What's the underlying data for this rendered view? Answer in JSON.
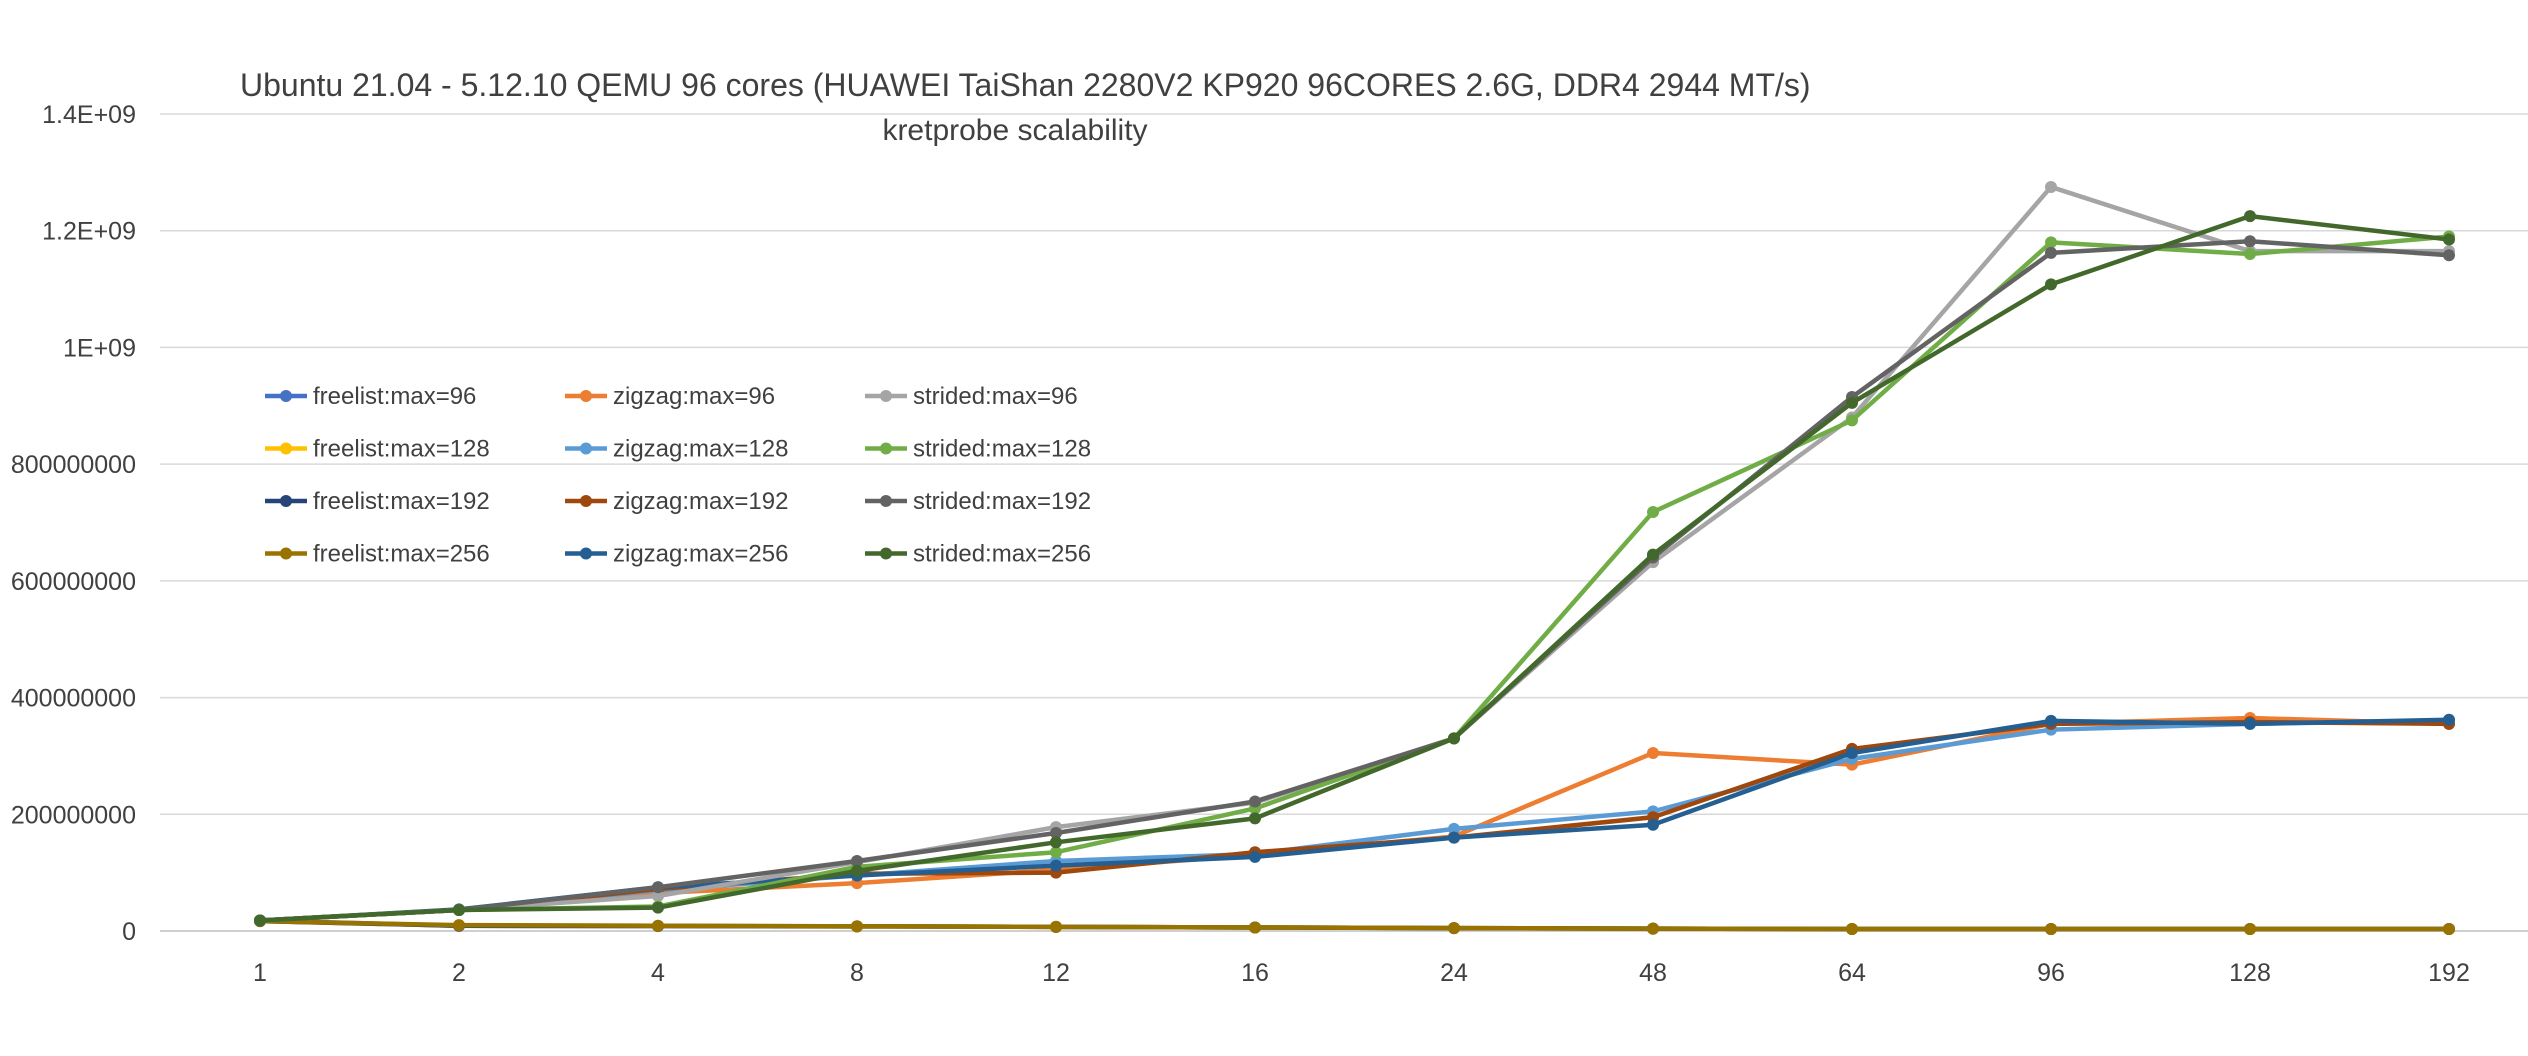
{
  "chart_data": {
    "type": "line",
    "title": "Ubuntu 21.04 - 5.12.10 QEMU 96 cores (HUAWEI TaiShan 2280V2  KP920 96CORES 2.6G, DDR4 2944 MT/s)",
    "subtitle": "kretprobe scalability",
    "xlabel": "",
    "ylabel": "",
    "categories": [
      "1",
      "2",
      "4",
      "8",
      "12",
      "16",
      "24",
      "48",
      "64",
      "96",
      "128",
      "192"
    ],
    "ylim": [
      0,
      1400000000
    ],
    "y_ticks": [
      {
        "value": 0,
        "label": "0"
      },
      {
        "value": 200000000,
        "label": "200000000"
      },
      {
        "value": 400000000,
        "label": "400000000"
      },
      {
        "value": 600000000,
        "label": "600000000"
      },
      {
        "value": 800000000,
        "label": "800000000"
      },
      {
        "value": 1000000000,
        "label": "1E+09"
      },
      {
        "value": 1200000000,
        "label": "1.2E+09"
      },
      {
        "value": 1400000000,
        "label": "1.4E+09"
      }
    ],
    "grid": true,
    "legend_position": "left, inside plot",
    "series": [
      {
        "name": "freelist:max=96",
        "color": "#4472C4",
        "values": [
          18000000,
          9000000,
          8500000,
          8000000,
          7000000,
          6000000,
          5000000,
          4000000,
          3500000,
          3500000,
          3500000,
          3500000
        ]
      },
      {
        "name": "freelist:max=128",
        "color": "#FFC000",
        "values": [
          17000000,
          9000000,
          8500000,
          8000000,
          7000000,
          6000000,
          5000000,
          4000000,
          3500000,
          3500000,
          3500000,
          3500000
        ]
      },
      {
        "name": "freelist:max=192",
        "color": "#264478",
        "values": [
          17000000,
          9000000,
          8500000,
          8000000,
          7000000,
          6000000,
          5000000,
          4000000,
          3500000,
          3500000,
          3500000,
          3500000
        ]
      },
      {
        "name": "freelist:max=256",
        "color": "#997300",
        "values": [
          17000000,
          10000000,
          9000000,
          8000000,
          7000000,
          6000000,
          5000000,
          4000000,
          3500000,
          3500000,
          3500000,
          3500000
        ]
      },
      {
        "name": "zigzag:max=96",
        "color": "#ED7D31",
        "values": [
          18000000,
          36000000,
          65000000,
          82000000,
          105000000,
          130000000,
          162000000,
          305000000,
          285000000,
          355000000,
          365000000,
          355000000
        ]
      },
      {
        "name": "zigzag:max=128",
        "color": "#5B9BD5",
        "values": [
          18000000,
          36000000,
          70000000,
          95000000,
          120000000,
          132000000,
          175000000,
          205000000,
          295000000,
          345000000,
          355000000,
          360000000
        ]
      },
      {
        "name": "zigzag:max=192",
        "color": "#9E480E",
        "values": [
          18000000,
          36000000,
          72000000,
          98000000,
          100000000,
          135000000,
          160000000,
          195000000,
          312000000,
          355000000,
          358000000,
          355000000
        ]
      },
      {
        "name": "zigzag:max=256",
        "color": "#255E91",
        "values": [
          18000000,
          37000000,
          75000000,
          95000000,
          112000000,
          127000000,
          160000000,
          182000000,
          305000000,
          360000000,
          355000000,
          362000000
        ]
      },
      {
        "name": "strided:max=96",
        "color": "#A5A5A5",
        "values": [
          18000000,
          36000000,
          60000000,
          118000000,
          178000000,
          220000000,
          330000000,
          632000000,
          880000000,
          1275000000,
          1165000000,
          1165000000
        ]
      },
      {
        "name": "strided:max=128",
        "color": "#70AD47",
        "values": [
          18000000,
          36000000,
          42000000,
          110000000,
          135000000,
          210000000,
          330000000,
          718000000,
          875000000,
          1180000000,
          1160000000,
          1190000000
        ]
      },
      {
        "name": "strided:max=192",
        "color": "#636363",
        "values": [
          18000000,
          36000000,
          75000000,
          120000000,
          168000000,
          222000000,
          330000000,
          640000000,
          915000000,
          1162000000,
          1182000000,
          1158000000
        ]
      },
      {
        "name": "strided:max=256",
        "color": "#43682B",
        "values": [
          18000000,
          36000000,
          40000000,
          103000000,
          152000000,
          193000000,
          330000000,
          645000000,
          905000000,
          1108000000,
          1225000000,
          1185000000
        ]
      }
    ],
    "legend_order": [
      "freelist:max=96",
      "zigzag:max=96",
      "strided:max=96",
      "freelist:max=128",
      "zigzag:max=128",
      "strided:max=128",
      "freelist:max=192",
      "zigzag:max=192",
      "strided:max=192",
      "freelist:max=256",
      "zigzag:max=256",
      "strided:max=256"
    ]
  }
}
